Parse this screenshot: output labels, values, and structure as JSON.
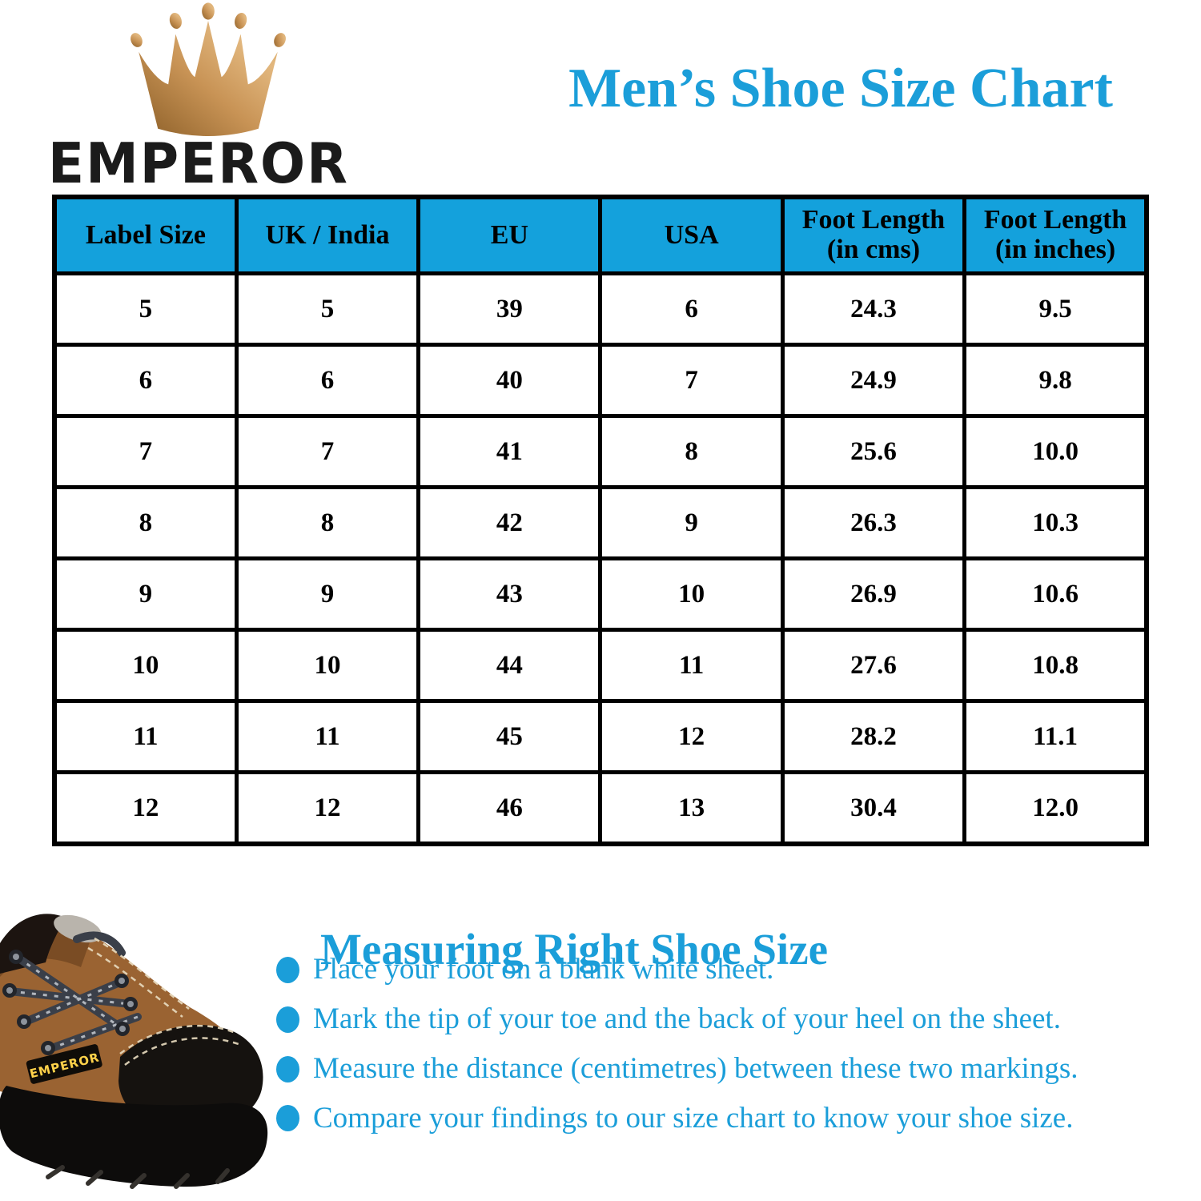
{
  "brand": {
    "name": "EMPEROR"
  },
  "title": "Men’s Shoe Size Chart",
  "colors": {
    "accent": "#1B9ED9",
    "table_header_bg": "#14A1DC",
    "table_border": "#000000",
    "crown_gold_dark": "#8C5F28",
    "crown_gold_light": "#E2B77E"
  },
  "chart_data": {
    "type": "table",
    "title": "Men’s Shoe Size Chart",
    "columns": [
      "Label Size",
      "UK / India",
      "EU",
      "USA",
      "Foot Length (in cms)",
      "Foot Length (in inches)"
    ],
    "rows": [
      [
        "5",
        "5",
        "39",
        "6",
        "24.3",
        "9.5"
      ],
      [
        "6",
        "6",
        "40",
        "7",
        "24.9",
        "9.8"
      ],
      [
        "7",
        "7",
        "41",
        "8",
        "25.6",
        "10.0"
      ],
      [
        "8",
        "8",
        "42",
        "9",
        "26.3",
        "10.3"
      ],
      [
        "9",
        "9",
        "43",
        "10",
        "26.9",
        "10.6"
      ],
      [
        "10",
        "10",
        "44",
        "11",
        "27.6",
        "10.8"
      ],
      [
        "11",
        "11",
        "45",
        "12",
        "28.2",
        "11.1"
      ],
      [
        "12",
        "12",
        "46",
        "13",
        "30.4",
        "12.0"
      ]
    ]
  },
  "measuring": {
    "heading": "Measuring Right Shoe Size",
    "steps": [
      "Place your foot on a blank white sheet.",
      "Mark the tip of your toe and the back of your heel on the sheet.",
      "Measure the distance (centimetres) between these two markings.",
      "Compare your findings to our size chart to know your shoe size."
    ]
  }
}
